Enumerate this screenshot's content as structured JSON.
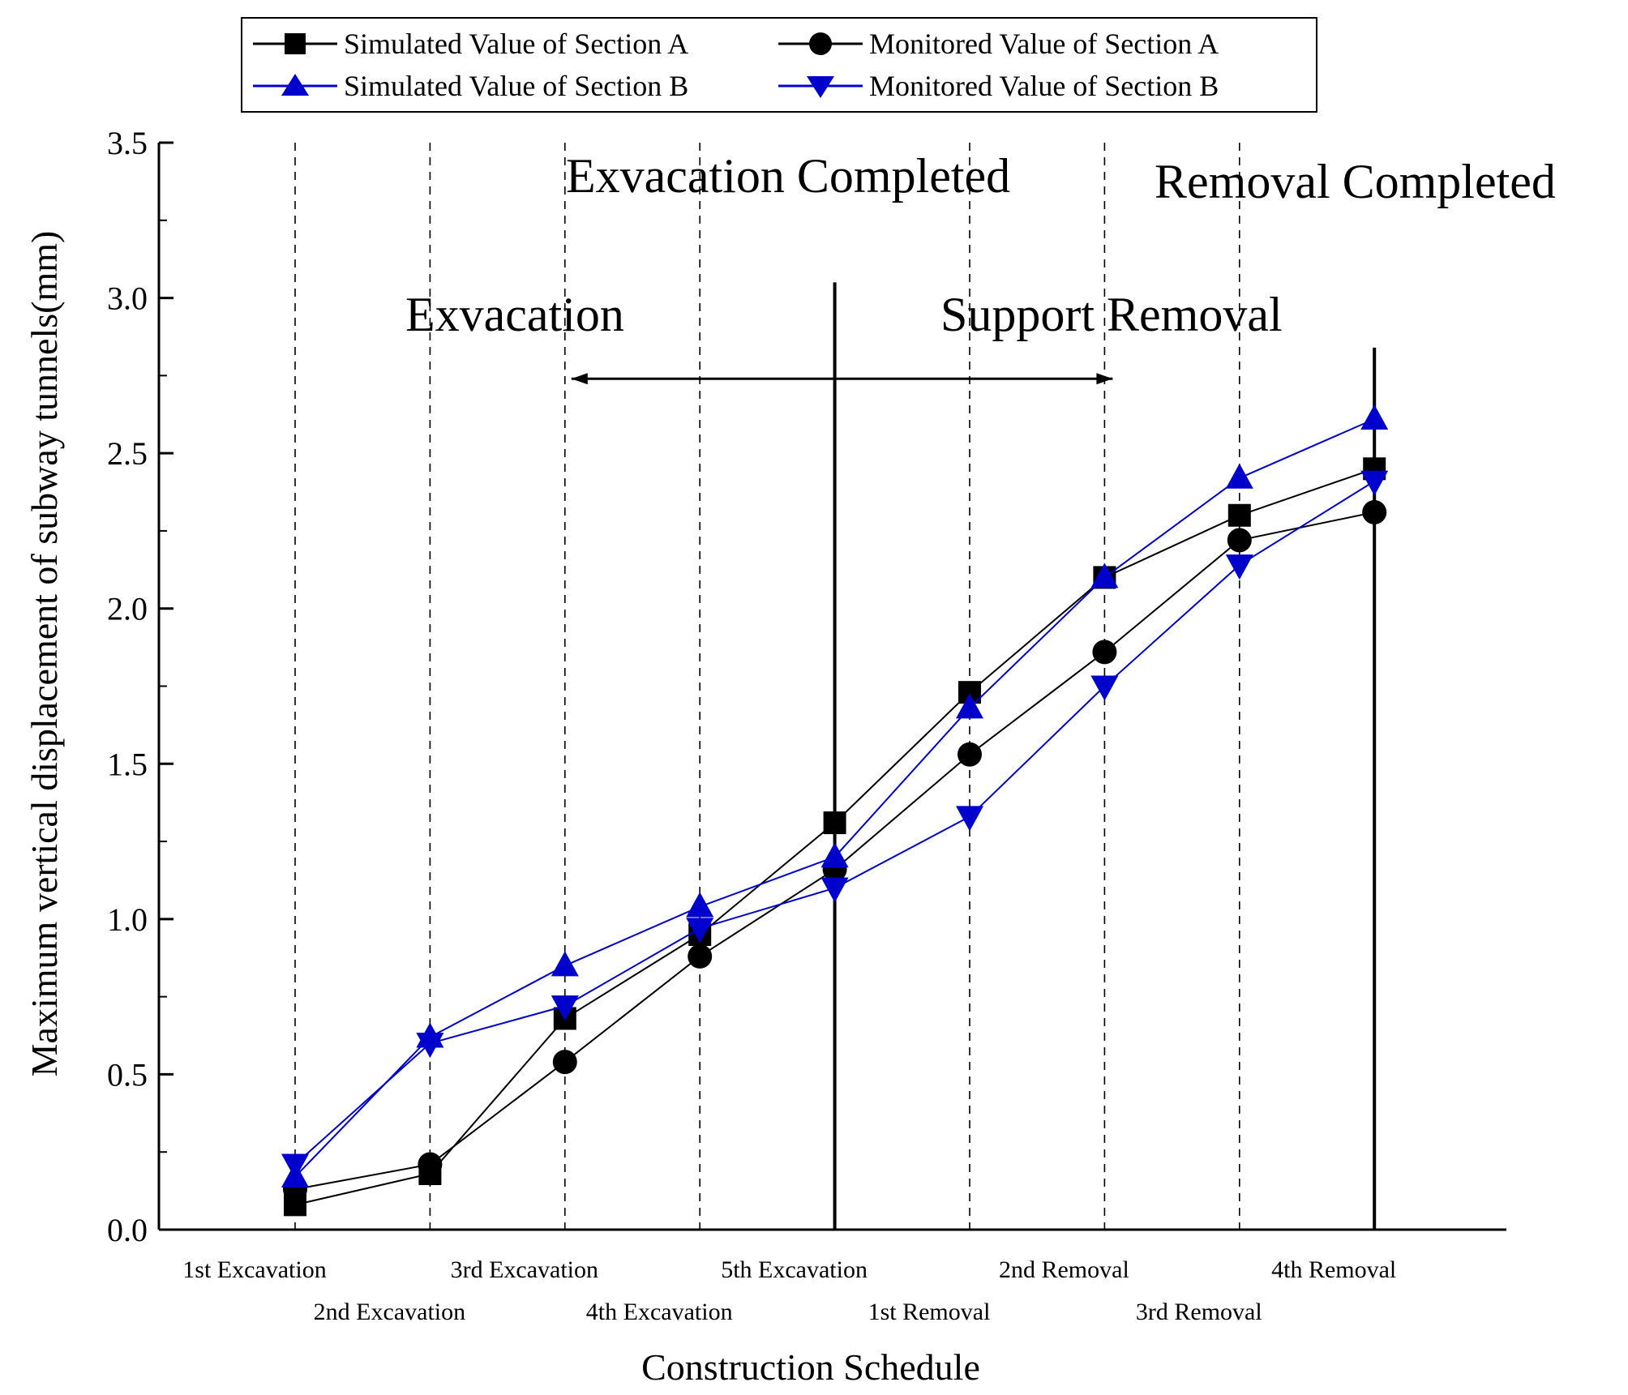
{
  "chart_data": {
    "type": "line",
    "xlabel": "Construction Schedule",
    "ylabel": "Maximum vertical displacement of subway tunnels(mm)",
    "ylim": [
      0,
      3.5
    ],
    "yticks": [
      0.0,
      0.5,
      1.0,
      1.5,
      2.0,
      2.5,
      3.0,
      3.5
    ],
    "ytick_labels": [
      "0.0",
      "0.5",
      "1.0",
      "1.5",
      "2.0",
      "2.5",
      "3.0",
      "3.5"
    ],
    "categories": [
      "1st Excavation",
      "2nd Excavation",
      "3rd Excavation",
      "4th Excavation",
      "5th Excavation",
      "1st Removal",
      "2nd Removal",
      "3rd Removal",
      "4th Removal"
    ],
    "series": [
      {
        "name": "Simulated Value of Section A",
        "marker": "square",
        "color": "#000000",
        "values": [
          0.08,
          0.18,
          0.68,
          0.95,
          1.31,
          1.73,
          2.1,
          2.3,
          2.45
        ]
      },
      {
        "name": "Monitored Value of Section A",
        "marker": "circle",
        "color": "#000000",
        "values": [
          0.13,
          0.21,
          0.54,
          0.88,
          1.16,
          1.53,
          1.86,
          2.22,
          2.31
        ]
      },
      {
        "name": "Simulated Value of Section B",
        "marker": "triangle-up",
        "color": "#0000cc",
        "values": [
          0.17,
          0.62,
          0.85,
          1.04,
          1.2,
          1.68,
          2.1,
          2.42,
          2.61
        ]
      },
      {
        "name": "Monitored Value of Section B",
        "marker": "triangle-down",
        "color": "#0000cc",
        "values": [
          0.21,
          0.6,
          0.72,
          0.97,
          1.1,
          1.33,
          1.75,
          2.14,
          2.41
        ]
      }
    ],
    "annotations": {
      "excavation_completed": "Exvacation Completed",
      "removal_completed": "Removal Completed",
      "excavation": "Exvacation",
      "support_removal": "Support Removal"
    },
    "legend_position": "top"
  }
}
